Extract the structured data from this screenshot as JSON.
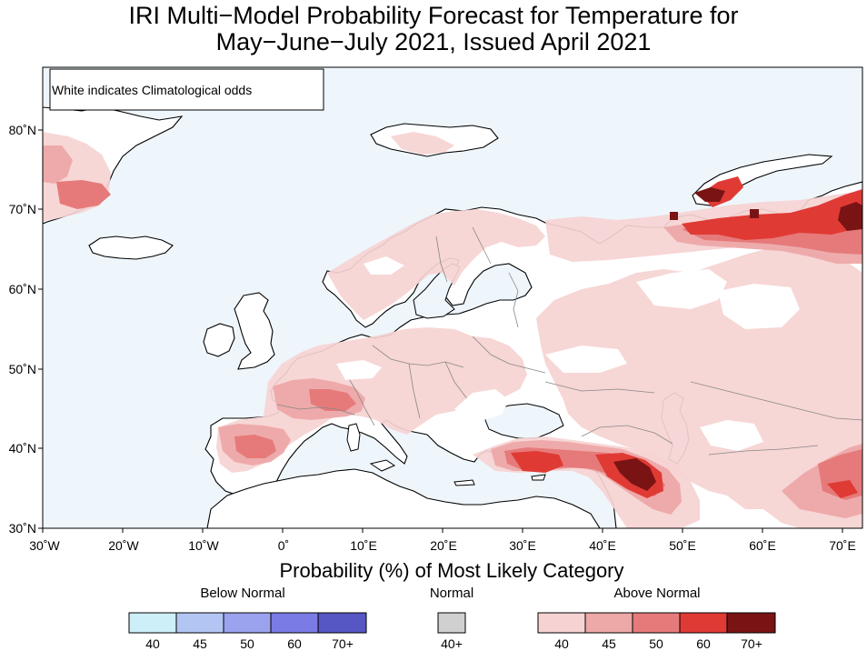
{
  "title": {
    "line1": "IRI Multi−Model Probability Forecast for Temperature for",
    "line2": "May−June−July 2021, Issued April 2021"
  },
  "map": {
    "note": "White indicates Climatological odds",
    "lat_labels": [
      "30˚N",
      "40˚N",
      "50˚N",
      "60˚N",
      "70˚N",
      "80˚N"
    ],
    "lon_labels": [
      "30˚W",
      "20˚W",
      "10˚W",
      "0˚",
      "10˚E",
      "20˚E",
      "30˚E",
      "40˚E",
      "50˚E",
      "60˚E",
      "70˚E"
    ],
    "colors": {
      "ocean": "#eef6fc",
      "land_climatology": "#ffffff",
      "above_40": "#f6d2d2",
      "above_45": "#eda8a8",
      "above_50": "#e67a7a",
      "above_60": "#e03a35",
      "above_70": "#7a1414"
    }
  },
  "legend": {
    "axis_title": "Probability (%) of Most Likely Category",
    "below": {
      "title": "Below Normal",
      "colors": [
        "#cdeff7",
        "#b3c6f3",
        "#9ba2ee",
        "#7b7be6",
        "#5656c4"
      ],
      "ticks": [
        "40",
        "45",
        "50",
        "60",
        "70+"
      ]
    },
    "normal": {
      "title": "Normal",
      "colors": [
        "#d0d0d0"
      ],
      "ticks": [
        "40+"
      ]
    },
    "above": {
      "title": "Above Normal",
      "colors": [
        "#f6d2d2",
        "#eda8a8",
        "#e67a7a",
        "#e03a35",
        "#7a1414"
      ],
      "ticks": [
        "40",
        "45",
        "50",
        "60",
        "70+"
      ]
    }
  }
}
